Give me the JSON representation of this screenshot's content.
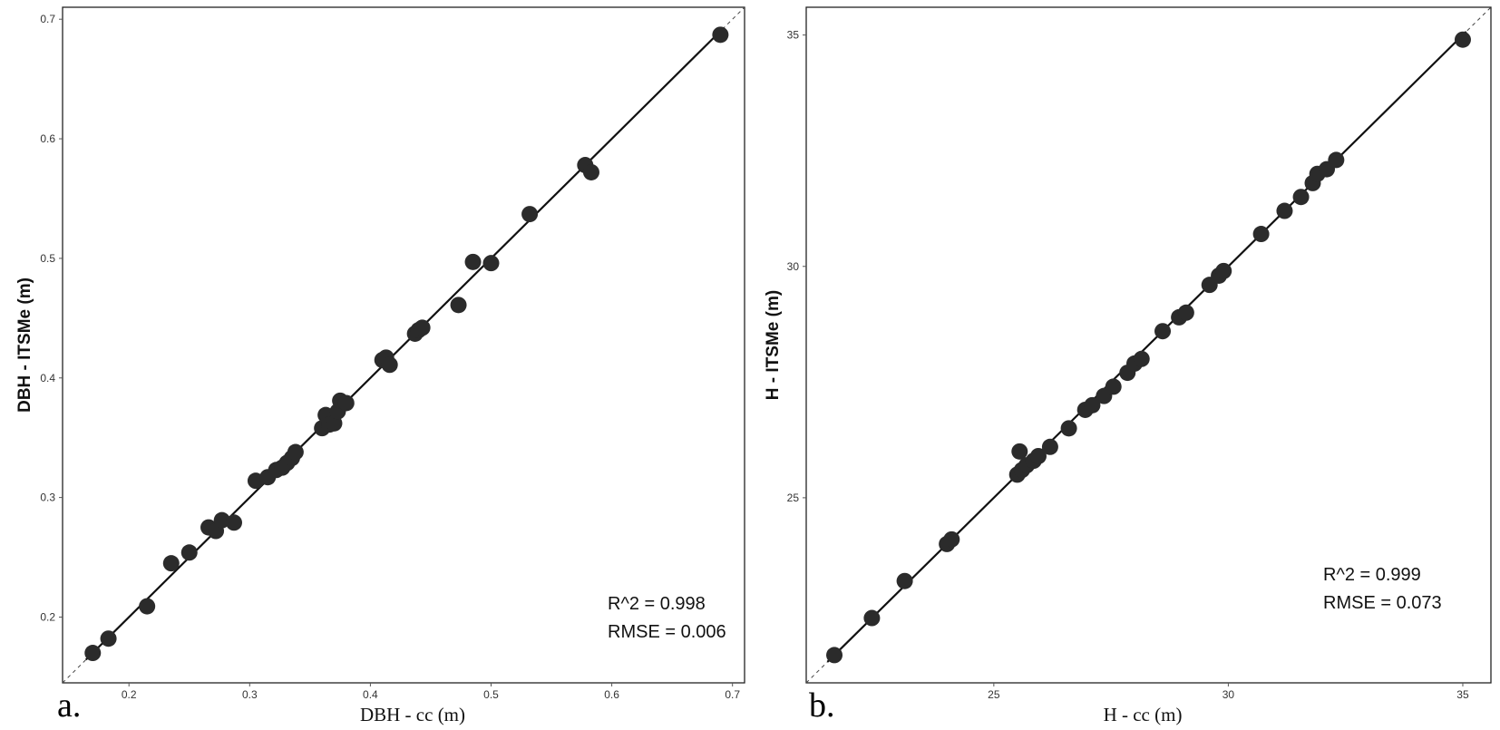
{
  "chart_data": [
    {
      "type": "scatter",
      "panel_label": "a.",
      "xlabel": "DBH - cc (m)",
      "ylabel": "DBH - ITSMe (m)",
      "xlim": [
        0.145,
        0.71
      ],
      "ylim": [
        0.145,
        0.71
      ],
      "xticks": [
        "0.2",
        "0.3",
        "0.4",
        "0.5",
        "0.6",
        "0.7"
      ],
      "yticks": [
        "0.2",
        "0.3",
        "0.4",
        "0.5",
        "0.6",
        "0.7"
      ],
      "annotations": [
        "R^2 = 0.998",
        "RMSE = 0.006"
      ],
      "identity_line": true,
      "fit_line": {
        "slope": 1.0,
        "intercept": 0.0
      },
      "points": [
        [
          0.17,
          0.17
        ],
        [
          0.183,
          0.182
        ],
        [
          0.215,
          0.209
        ],
        [
          0.235,
          0.245
        ],
        [
          0.25,
          0.254
        ],
        [
          0.266,
          0.275
        ],
        [
          0.272,
          0.272
        ],
        [
          0.277,
          0.281
        ],
        [
          0.287,
          0.279
        ],
        [
          0.305,
          0.314
        ],
        [
          0.315,
          0.317
        ],
        [
          0.322,
          0.323
        ],
        [
          0.327,
          0.325
        ],
        [
          0.331,
          0.329
        ],
        [
          0.335,
          0.333
        ],
        [
          0.338,
          0.338
        ],
        [
          0.36,
          0.358
        ],
        [
          0.363,
          0.369
        ],
        [
          0.366,
          0.361
        ],
        [
          0.37,
          0.362
        ],
        [
          0.373,
          0.372
        ],
        [
          0.375,
          0.381
        ],
        [
          0.38,
          0.379
        ],
        [
          0.41,
          0.415
        ],
        [
          0.413,
          0.417
        ],
        [
          0.416,
          0.411
        ],
        [
          0.437,
          0.437
        ],
        [
          0.44,
          0.44
        ],
        [
          0.443,
          0.442
        ],
        [
          0.473,
          0.461
        ],
        [
          0.485,
          0.497
        ],
        [
          0.5,
          0.496
        ],
        [
          0.532,
          0.537
        ],
        [
          0.578,
          0.578
        ],
        [
          0.583,
          0.572
        ],
        [
          0.69,
          0.687
        ]
      ]
    },
    {
      "type": "scatter",
      "panel_label": "b.",
      "xlabel": "H - cc (m)",
      "ylabel": "H - ITSMe (m)",
      "xlim": [
        21.0,
        35.6
      ],
      "ylim": [
        21.0,
        35.6
      ],
      "xticks": [
        "25",
        "30",
        "35"
      ],
      "yticks": [
        "25",
        "30",
        "35"
      ],
      "annotations": [
        "R^2 = 0.999",
        "RMSE = 0.073"
      ],
      "identity_line": true,
      "fit_line": {
        "slope": 1.0,
        "intercept": 0.0
      },
      "points": [
        [
          21.6,
          21.6
        ],
        [
          22.4,
          22.4
        ],
        [
          23.1,
          23.2
        ],
        [
          24.0,
          24.0
        ],
        [
          24.1,
          24.1
        ],
        [
          25.5,
          25.5
        ],
        [
          25.6,
          25.6
        ],
        [
          25.55,
          26.0
        ],
        [
          25.7,
          25.7
        ],
        [
          25.85,
          25.8
        ],
        [
          25.95,
          25.9
        ],
        [
          26.2,
          26.1
        ],
        [
          26.6,
          26.5
        ],
        [
          26.95,
          26.9
        ],
        [
          27.1,
          27.0
        ],
        [
          27.35,
          27.2
        ],
        [
          27.55,
          27.4
        ],
        [
          27.85,
          27.7
        ],
        [
          28.0,
          27.9
        ],
        [
          28.15,
          28.0
        ],
        [
          28.6,
          28.6
        ],
        [
          28.95,
          28.9
        ],
        [
          29.1,
          29.0
        ],
        [
          29.6,
          29.6
        ],
        [
          29.8,
          29.8
        ],
        [
          29.9,
          29.9
        ],
        [
          30.7,
          30.7
        ],
        [
          31.2,
          31.2
        ],
        [
          31.55,
          31.5
        ],
        [
          31.8,
          31.8
        ],
        [
          31.9,
          32.0
        ],
        [
          32.1,
          32.1
        ],
        [
          32.3,
          32.3
        ],
        [
          35.0,
          34.9
        ]
      ]
    }
  ]
}
